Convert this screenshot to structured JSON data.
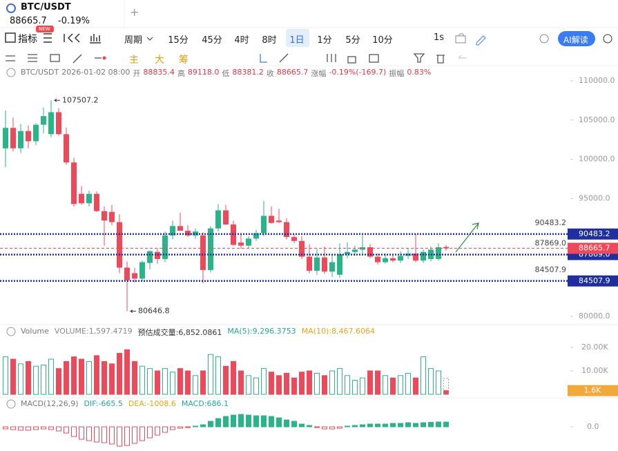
{
  "header": {
    "symbol": "BTC/USDT",
    "price": "88665.7",
    "change": "-0.19%",
    "add_tab": "+"
  },
  "toolbar": {
    "indicators": "指标",
    "badge": "NEW",
    "period": "周期",
    "intervals": [
      "15分",
      "45分",
      "4时",
      "8时",
      "1日",
      "1分",
      "5分",
      "10分"
    ],
    "selected": 4,
    "realtime": "1s",
    "ai": "AI解读"
  },
  "drawing_tools": {
    "labels": [
      "主",
      "大",
      "筹"
    ]
  },
  "info": {
    "symbol": "BTC/USDT",
    "time": "2026-01-02 08:00",
    "fields": [
      {
        "label": "开",
        "value": "88835.4"
      },
      {
        "label": "高",
        "value": "89118.0"
      },
      {
        "label": "低",
        "value": "88381.2"
      },
      {
        "label": "收",
        "value": "88665.7"
      },
      {
        "label": "涨幅",
        "value": "-0.19%(-169.7)"
      },
      {
        "label": "振幅",
        "value": "0.83%"
      }
    ]
  },
  "volume_legend": {
    "title": "Volume",
    "items": [
      {
        "text": "VOLUME:1,597.4719",
        "color": "#888888"
      },
      {
        "text": "预估成交量:6,852.0861",
        "color": "#333333"
      },
      {
        "text": "MA(5):9,296.3753",
        "color": "#26a69a"
      },
      {
        "text": "MA(10):8,467.6064",
        "color": "#e8a317"
      }
    ]
  },
  "macd_legend": {
    "title": "MACD(12,26,9)",
    "items": [
      {
        "text": "DIF:-665.5",
        "color": "#26a69a"
      },
      {
        "text": "DEA:-1008.6",
        "color": "#e8a317"
      },
      {
        "text": "MACD:686.1",
        "color": "#26a69a"
      }
    ]
  },
  "chart_data": {
    "type": "candlestick",
    "up_color": "#2bb38a",
    "down_color": "#ec4a5b",
    "ohlc": [
      [
        101400,
        106200,
        99000,
        104000
      ],
      [
        104000,
        105300,
        101000,
        101400
      ],
      [
        101400,
        104500,
        100800,
        103600
      ],
      [
        103600,
        104300,
        101400,
        102300
      ],
      [
        102300,
        104600,
        101800,
        104400
      ],
      [
        104400,
        106600,
        103300,
        105500
      ],
      [
        103200,
        107507.2,
        102800,
        106000
      ],
      [
        106000,
        106500,
        103000,
        103200
      ],
      [
        103200,
        104000,
        99300,
        99600
      ],
      [
        99600,
        100200,
        94000,
        94300
      ],
      [
        95600,
        96600,
        94200,
        94400
      ],
      [
        94400,
        96000,
        94000,
        95600
      ],
      [
        95600,
        95900,
        93300,
        93400
      ],
      [
        93400,
        94000,
        89000,
        92200
      ],
      [
        93300,
        94200,
        91600,
        92000
      ],
      [
        92000,
        93000,
        85500,
        86200
      ],
      [
        86200,
        87000,
        80646.8,
        84600
      ],
      [
        85500,
        86200,
        84300,
        84800
      ],
      [
        84800,
        87100,
        84500,
        86900
      ],
      [
        86800,
        88400,
        86000,
        88300
      ],
      [
        88200,
        88600,
        86700,
        87300
      ],
      [
        87300,
        90800,
        86900,
        90300
      ],
      [
        90300,
        92200,
        89800,
        91500
      ],
      [
        91500,
        93200,
        90900,
        90900
      ],
      [
        90900,
        91600,
        90100,
        90300
      ],
      [
        90300,
        91200,
        89900,
        90800
      ],
      [
        90300,
        90700,
        84200,
        85900
      ],
      [
        85900,
        91500,
        85600,
        91200
      ],
      [
        91200,
        94300,
        90800,
        93500
      ],
      [
        93500,
        94200,
        91600,
        91700
      ],
      [
        91700,
        92200,
        89000,
        89100
      ],
      [
        89400,
        90400,
        88600,
        89000
      ],
      [
        89000,
        90200,
        88700,
        89900
      ],
      [
        89900,
        91000,
        89600,
        90600
      ],
      [
        90600,
        94700,
        90200,
        92800
      ],
      [
        92800,
        94000,
        91800,
        91900
      ],
      [
        92200,
        93700,
        91900,
        92000
      ],
      [
        92000,
        92500,
        89800,
        90100
      ],
      [
        90100,
        90400,
        89300,
        89600
      ],
      [
        89600,
        90200,
        87300,
        87600
      ],
      [
        87600,
        89200,
        85500,
        85800
      ],
      [
        85800,
        88600,
        85300,
        87500
      ],
      [
        87500,
        88900,
        85400,
        85700
      ],
      [
        85700,
        87800,
        85000,
        86900
      ],
      [
        85300,
        89300,
        84900,
        87900
      ],
      [
        87900,
        89400,
        87400,
        88200
      ],
      [
        88200,
        89000,
        87700,
        88500
      ],
      [
        88500,
        90300,
        88000,
        88800
      ],
      [
        88800,
        89200,
        87400,
        87600
      ],
      [
        87600,
        88000,
        86600,
        86900
      ],
      [
        86900,
        88000,
        86700,
        87400
      ],
      [
        87400,
        87800,
        86900,
        87100
      ],
      [
        87100,
        88300,
        86800,
        87700
      ],
      [
        87700,
        88700,
        87300,
        88000
      ],
      [
        88000,
        90500,
        86900,
        87100
      ],
      [
        87100,
        88500,
        86800,
        88200
      ],
      [
        87300,
        88900,
        87000,
        88500
      ],
      [
        87300,
        89300,
        87100,
        88800
      ],
      [
        88835.4,
        89118.0,
        88381.2,
        88665.7
      ]
    ],
    "ylim": [
      79000,
      111000
    ],
    "yticks": [
      {
        "value": 110000,
        "label": "110000.0"
      },
      {
        "value": 105000,
        "label": "105000.0"
      },
      {
        "value": 100000,
        "label": "100000.0"
      },
      {
        "value": 95000,
        "label": "95000.0"
      },
      {
        "value": 80000,
        "label": "80000.0"
      }
    ],
    "levels": [
      90483.2,
      {
        "value": 87869,
        "label": "87869.0"
      },
      84507.9
    ],
    "level_color": "#1f2f9f",
    "volume": {
      "values": [
        16000,
        15000,
        13000,
        14000,
        12000,
        12500,
        15000,
        11000,
        14000,
        16000,
        15000,
        14000,
        16500,
        14000,
        13000,
        17500,
        19000,
        14000,
        12000,
        11000,
        10000,
        11000,
        9500,
        11000,
        10000,
        8000,
        10000,
        17000,
        16000,
        12000,
        14000,
        10000,
        8000,
        7000,
        11000,
        9500,
        8000,
        9000,
        7000,
        9500,
        10000,
        9000,
        8000,
        10000,
        11000,
        8000,
        6000,
        7000,
        10000,
        10000,
        8000,
        7000,
        8000,
        9000,
        7000,
        16000,
        11000,
        10000,
        1597.4719
      ],
      "estimate": 6852.0861,
      "ylim": [
        0,
        21000
      ],
      "yticks": [
        {
          "value": 20000,
          "label": "20.00K"
        },
        {
          "value": 10000,
          "label": "10.00K"
        }
      ],
      "current_label": "1.6K",
      "current_color": "#f2a93b"
    },
    "macd": {
      "values": [
        -300,
        -400,
        -500,
        -500,
        -400,
        -300,
        -400,
        -600,
        -900,
        -1400,
        -1800,
        -2000,
        -2200,
        -2300,
        -2500,
        -2800,
        -2700,
        -2400,
        -2000,
        -1600,
        -1200,
        -800,
        -400,
        -200,
        -100,
        100,
        300,
        800,
        1200,
        1500,
        1700,
        1800,
        1700,
        1600,
        1600,
        1500,
        1300,
        1000,
        800,
        400,
        200,
        -100,
        -300,
        -300,
        -200,
        100,
        200,
        300,
        400,
        400,
        400,
        500,
        500,
        600,
        500,
        600,
        650,
        700,
        686.1
      ],
      "ylim": [
        -3200,
        2300
      ],
      "yticks": [
        {
          "value": 0,
          "label": "0.0"
        }
      ]
    }
  }
}
